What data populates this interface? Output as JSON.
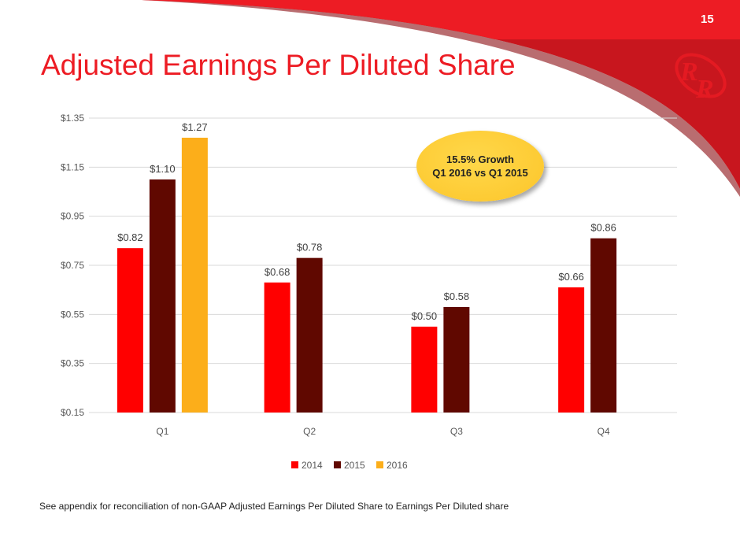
{
  "page": {
    "title": "Adjusted Earnings Per Diluted Share",
    "page_number": "15",
    "footnote": "See appendix for reconciliation of non-GAAP Adjusted Earnings Per Diluted Share to Earnings Per Diluted share",
    "logo": "RR",
    "colors": {
      "brand_red": "#ed1c24",
      "brand_dark_red": "#c8161e"
    }
  },
  "callout": {
    "line1": "15.5% Growth",
    "line2": "Q1 2016 vs Q1 2015"
  },
  "chart_data": {
    "type": "bar",
    "categories": [
      "Q1",
      "Q2",
      "Q3",
      "Q4"
    ],
    "series": [
      {
        "name": "2014",
        "color": "#ff0000",
        "values": [
          0.82,
          0.68,
          0.5,
          0.66
        ],
        "labels": [
          "$0.82",
          "$0.68",
          "$0.50",
          "$0.66"
        ]
      },
      {
        "name": "2015",
        "color": "#600800",
        "values": [
          1.1,
          0.78,
          0.58,
          0.86
        ],
        "labels": [
          "$1.10",
          "$0.78",
          "$0.58",
          "$0.86"
        ]
      },
      {
        "name": "2016",
        "color": "#fcae1a",
        "values": [
          1.27,
          null,
          null,
          null
        ],
        "labels": [
          "$1.27",
          null,
          null,
          null
        ]
      }
    ],
    "ylim": [
      0.15,
      1.35
    ],
    "yticks": [
      0.15,
      0.35,
      0.55,
      0.75,
      0.95,
      1.15,
      1.35
    ],
    "ytick_labels": [
      "$0.15",
      "$0.35",
      "$0.55",
      "$0.75",
      "$0.95",
      "$1.15",
      "$1.35"
    ],
    "grid": true,
    "legend": "bottom"
  }
}
